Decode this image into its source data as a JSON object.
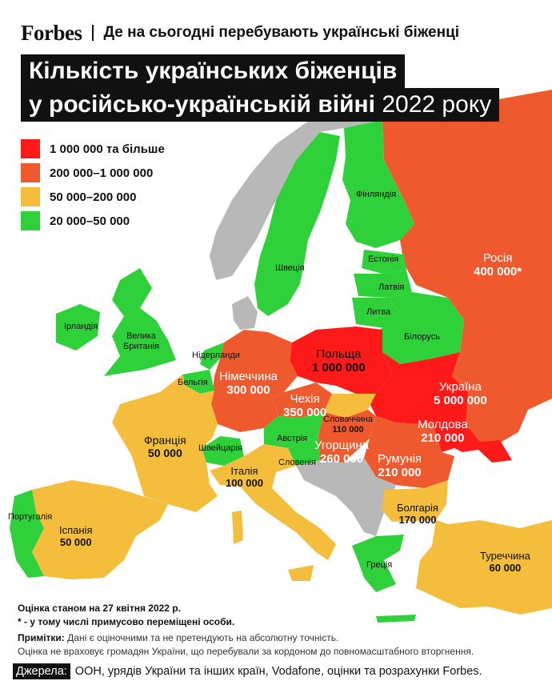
{
  "header": {
    "brand": "Forbes",
    "subtitle": "Де на сьогодні перебувають українські біженці"
  },
  "title": {
    "line1": "Кількість українських біженців",
    "line2_main": "у російсько-українській війні",
    "line2_year": "2022 року"
  },
  "colors": {
    "red": "#ff1a1a",
    "orange": "#ee5a2e",
    "yellow": "#f4be3c",
    "green": "#2fd13a",
    "gray": "#b8b8b8",
    "darkgreen": "#1d8a26"
  },
  "legend": [
    {
      "label": "1 000 000 та більше",
      "color": "#ff1a1a"
    },
    {
      "label": "200 000–1 000 000",
      "color": "#ee5a2e"
    },
    {
      "label": "50 000–200 000",
      "color": "#f4be3c"
    },
    {
      "label": "20 000–50 000",
      "color": "#2fd13a"
    }
  ],
  "countries": {
    "finland": "Фінляндія",
    "sweden": "Швеція",
    "estonia": "Естонія",
    "latvia": "Латвія",
    "lithuania": "Литва",
    "belarus": "Білорусь",
    "russia": {
      "name": "Росія",
      "value": "400 000*"
    },
    "ireland": "Ірландія",
    "uk": {
      "line1": "Велика",
      "line2": "Британія"
    },
    "netherlands": "Нідерланди",
    "belgium": "Бельгія",
    "germany": {
      "name": "Німеччина",
      "value": "300 000"
    },
    "poland": {
      "name": "Польща",
      "value": "1 000 000"
    },
    "ukraine": {
      "name": "Україна",
      "value": "5 000 000"
    },
    "czechia": {
      "name": "Чехія",
      "value": "350 000"
    },
    "slovakia": {
      "name": "Словаччина",
      "value": "110 000"
    },
    "moldova": {
      "name": "Молдова",
      "value": "210 000"
    },
    "france": {
      "name": "Франція",
      "value": "50 000"
    },
    "switzerland": "Швейцарія",
    "austria": "Австрія",
    "slovenia": "Словенія",
    "hungary": {
      "name": "Угорщина",
      "value": "260 000"
    },
    "romania": {
      "name": "Румунія",
      "value": "210 000"
    },
    "italy": {
      "name": "Італія",
      "value": "100 000"
    },
    "portugal": "Португалія",
    "spain": {
      "name": "Іспанія",
      "value": "50 000"
    },
    "bulgaria": {
      "name": "Болгарія",
      "value": "170 000"
    },
    "turkey": {
      "name": "Туреччина",
      "value": "60 000"
    },
    "greece": "Греція"
  },
  "notes": {
    "date": "Оцінка станом на 27 квітня 2022 р.",
    "asterisk": "* - у тому числі примусово переміщені особи.",
    "remarks_label": "Примітки:",
    "remarks_text": "Дані є оціночними та не претендують на абсолютну точність.",
    "remarks_line2": "Оцінка не враховує громадян України, що перебували за кордоном до повномасштабного вторгнення."
  },
  "sources": {
    "label": "Джерела:",
    "text": "ООН, урядів України та інших країн, Vodafone, оцінки та розрахунки Forbes."
  }
}
